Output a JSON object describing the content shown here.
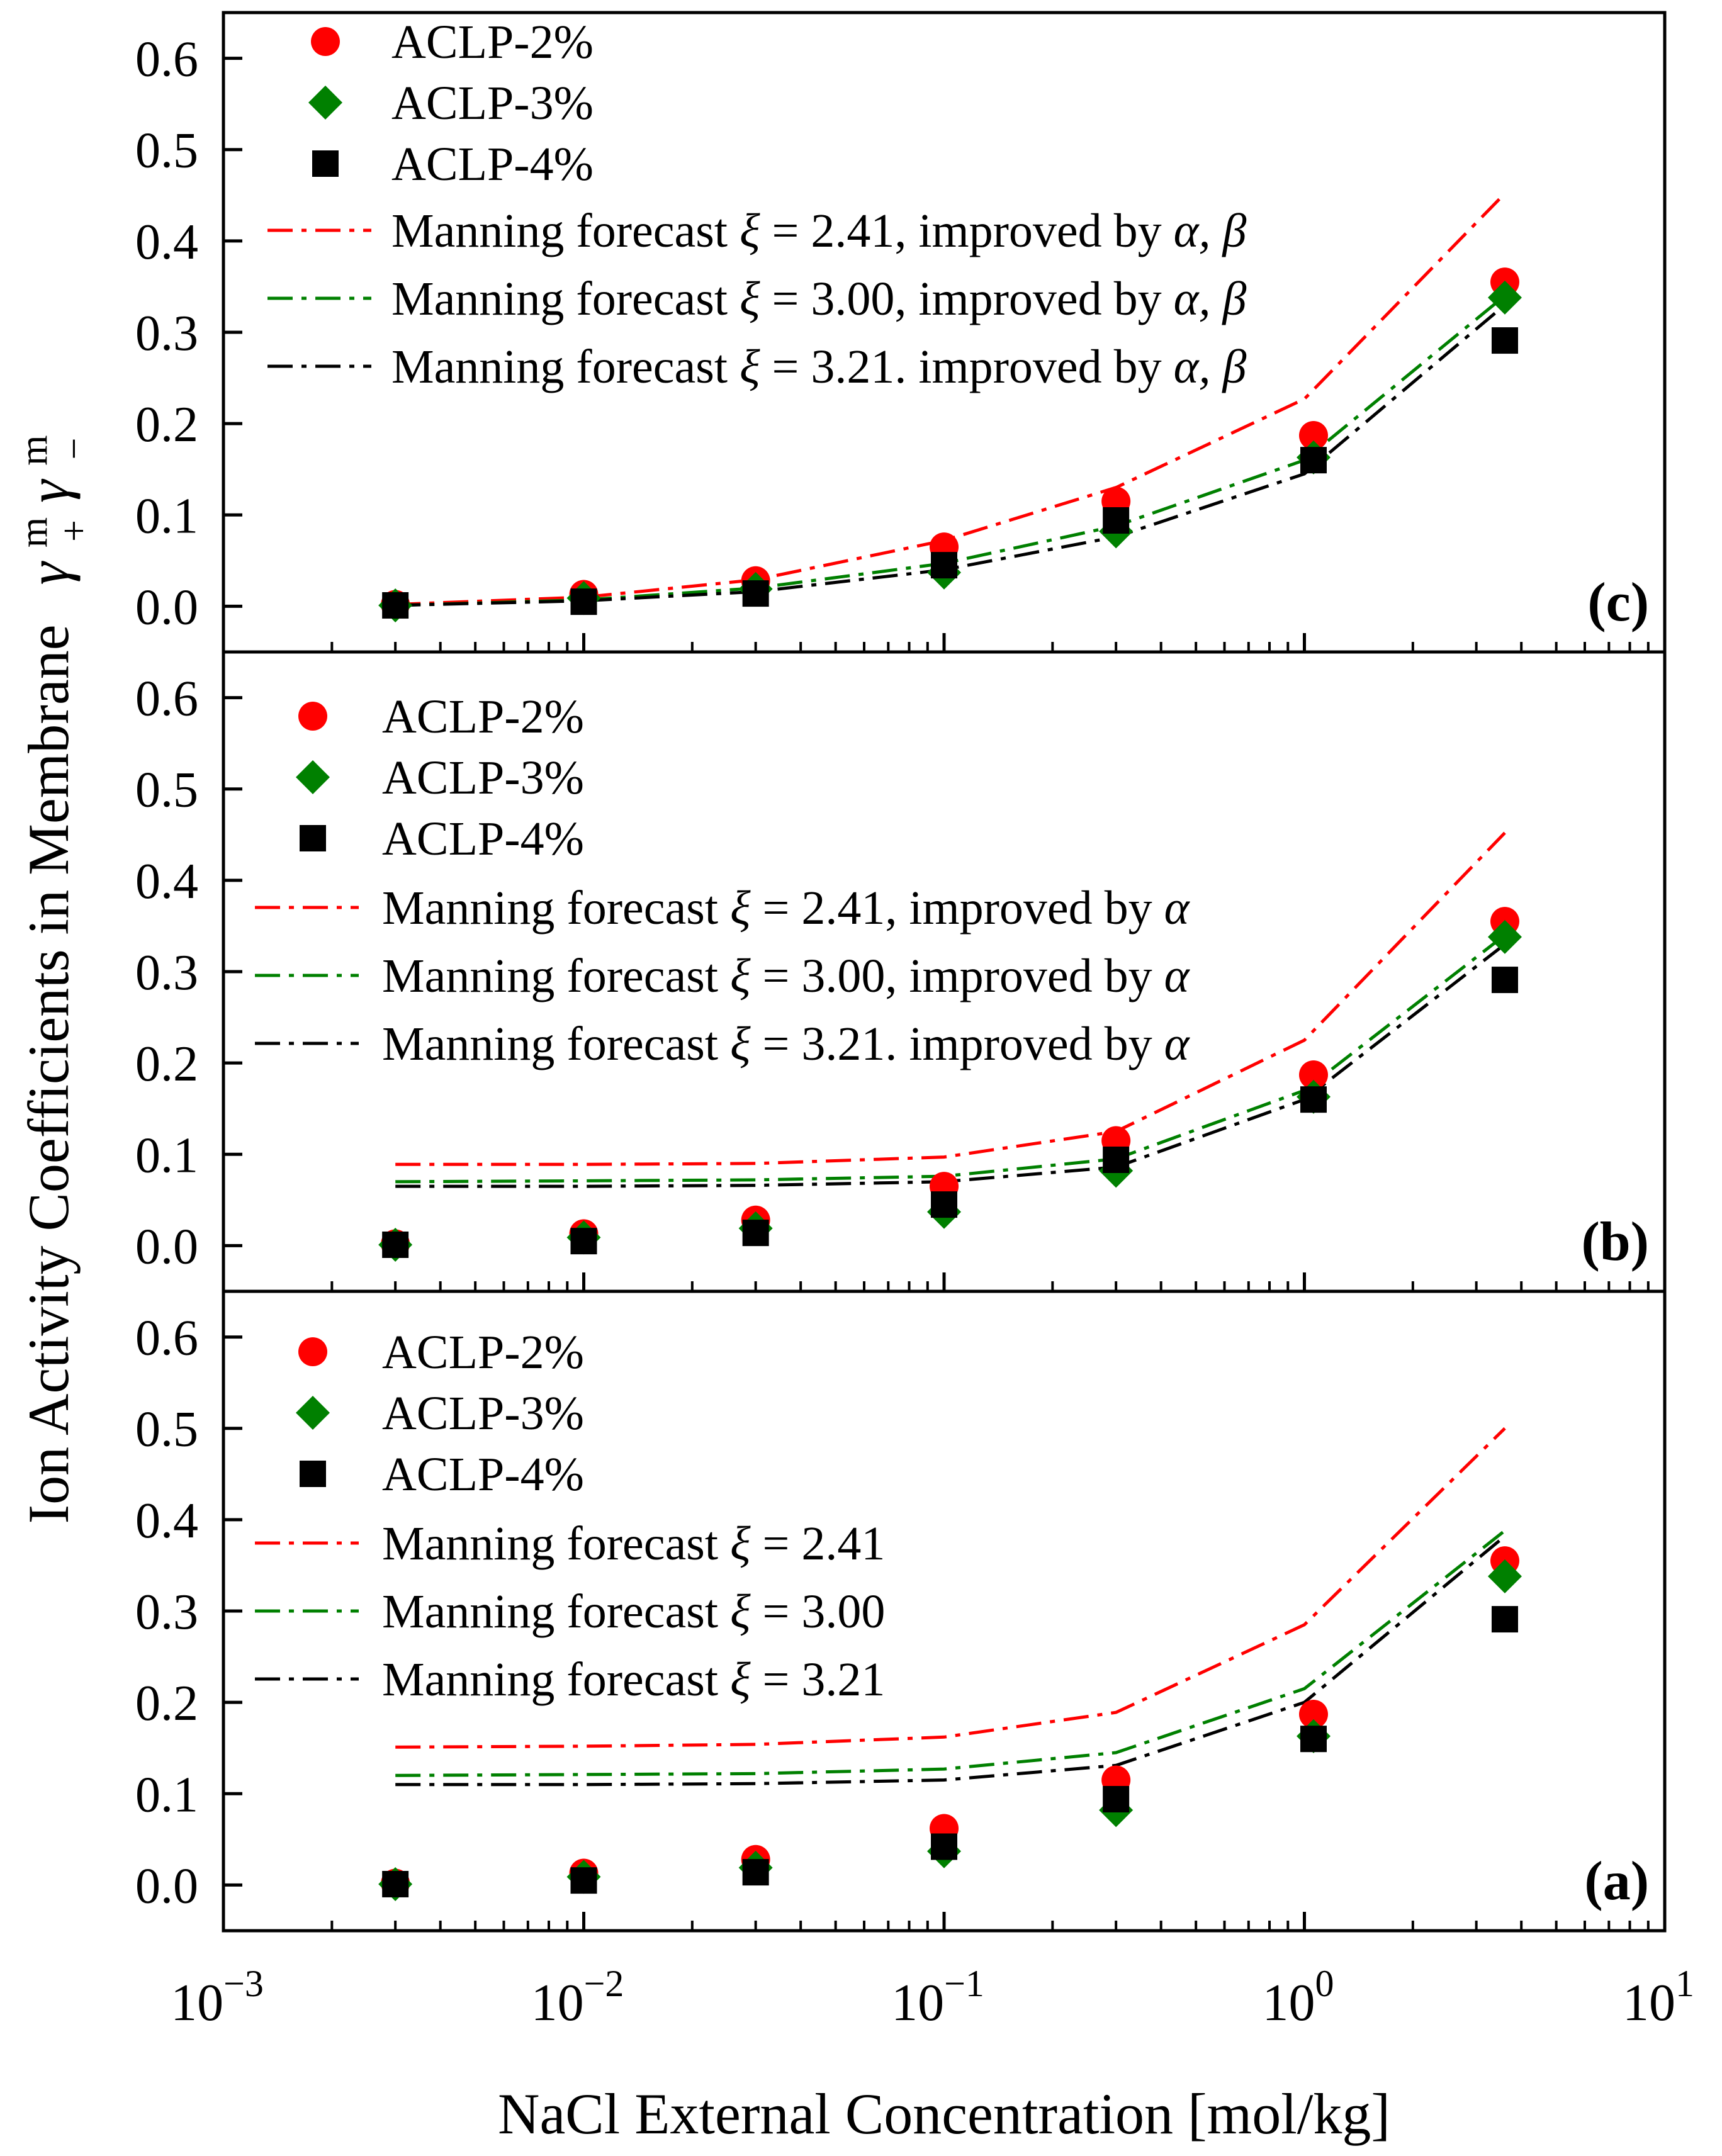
{
  "figure": {
    "ylabel": "Ion Activity Coefficients in Membrane",
    "ylabel_symbol": "γ",
    "ylabel_sup": "m",
    "ylabel_sub_plus": "+",
    "ylabel_sub_minus": "−",
    "xlabel": "NaCl External  Concentration [mol/kg]",
    "xtick_base": "10",
    "xtick_exponents": [
      "−3",
      "−2",
      "−1",
      "0",
      "1"
    ],
    "colors": {
      "red": "#ff0000",
      "green": "#008000",
      "black": "#000000"
    }
  },
  "chart_data": [
    {
      "type": "scatter",
      "panel_label": "(c)",
      "xscale": "log",
      "xlim": [
        0.001,
        10
      ],
      "ylim": [
        -0.05,
        0.65
      ],
      "yticks": [
        "0.0",
        "0.1",
        "0.2",
        "0.3",
        "0.4",
        "0.5",
        "0.6"
      ],
      "legend_position": "top-left",
      "x": [
        0.003,
        0.01,
        0.03,
        0.1,
        0.3,
        1.06,
        3.6
      ],
      "series": [
        {
          "name": "ACLP-2%",
          "marker": "circle",
          "color": "#ff0000",
          "values": [
            0.002,
            0.013,
            0.028,
            0.065,
            0.115,
            0.187,
            0.355
          ]
        },
        {
          "name": "ACLP-3%",
          "marker": "diamond",
          "color": "#008000",
          "values": [
            0.001,
            0.009,
            0.019,
            0.037,
            0.082,
            0.163,
            0.338
          ]
        },
        {
          "name": "ACLP-4%",
          "marker": "square",
          "color": "#000000",
          "values": [
            0.001,
            0.005,
            0.014,
            0.045,
            0.094,
            0.16,
            0.291
          ]
        }
      ],
      "lines": [
        {
          "prefix": "Manning forecast ",
          "xi": "ξ",
          "rest": " = 2.41, improved by ",
          "greek": "α, β",
          "color": "#ff0000",
          "x": [
            0.003,
            0.01,
            0.03,
            0.1,
            0.3,
            1.0,
            3.6
          ],
          "values": [
            0.002,
            0.01,
            0.029,
            0.072,
            0.13,
            0.227,
            0.452
          ]
        },
        {
          "prefix": "Manning forecast ",
          "xi": "ξ",
          "rest": " = 3.00, improved by ",
          "greek": "α, β",
          "color": "#008000",
          "x": [
            0.003,
            0.01,
            0.03,
            0.1,
            0.3,
            1.0,
            3.6
          ],
          "values": [
            0.001,
            0.007,
            0.02,
            0.047,
            0.088,
            0.16,
            0.34
          ]
        },
        {
          "prefix": "Manning forecast ",
          "xi": "ξ",
          "rest": " = 3.21. improved by ",
          "greek": "α, β",
          "color": "#000000",
          "x": [
            0.003,
            0.01,
            0.03,
            0.1,
            0.3,
            1.0,
            3.6
          ],
          "values": [
            0.001,
            0.006,
            0.016,
            0.04,
            0.076,
            0.145,
            0.33
          ]
        }
      ]
    },
    {
      "type": "scatter",
      "panel_label": "(b)",
      "xscale": "log",
      "xlim": [
        0.001,
        10
      ],
      "ylim": [
        -0.05,
        0.65
      ],
      "yticks": [
        "0.0",
        "0.1",
        "0.2",
        "0.3",
        "0.4",
        "0.5",
        "0.6"
      ],
      "legend_position": "top-left",
      "x": [
        0.003,
        0.01,
        0.03,
        0.1,
        0.3,
        1.06,
        3.6
      ],
      "series": [
        {
          "name": "ACLP-2%",
          "marker": "circle",
          "color": "#ff0000",
          "values": [
            0.002,
            0.013,
            0.028,
            0.065,
            0.115,
            0.187,
            0.355
          ]
        },
        {
          "name": "ACLP-3%",
          "marker": "diamond",
          "color": "#008000",
          "values": [
            0.001,
            0.009,
            0.019,
            0.037,
            0.082,
            0.163,
            0.338
          ]
        },
        {
          "name": "ACLP-4%",
          "marker": "square",
          "color": "#000000",
          "values": [
            0.001,
            0.005,
            0.014,
            0.045,
            0.094,
            0.16,
            0.291
          ]
        }
      ],
      "lines": [
        {
          "prefix": "Manning forecast ",
          "xi": "ξ",
          "rest": " = 2.41, improved by ",
          "greek": "α",
          "color": "#ff0000",
          "x": [
            0.003,
            0.01,
            0.03,
            0.1,
            0.3,
            1.0,
            3.6
          ],
          "values": [
            0.089,
            0.089,
            0.09,
            0.097,
            0.125,
            0.225,
            0.452
          ]
        },
        {
          "prefix": "Manning forecast ",
          "xi": "ξ",
          "rest": " = 3.00, improved by ",
          "greek": "α",
          "color": "#008000",
          "x": [
            0.003,
            0.01,
            0.03,
            0.1,
            0.3,
            1.0,
            3.6
          ],
          "values": [
            0.07,
            0.071,
            0.072,
            0.076,
            0.095,
            0.17,
            0.34
          ]
        },
        {
          "prefix": "Manning forecast ",
          "xi": "ξ",
          "rest": " = 3.21. improved by ",
          "greek": "α",
          "color": "#000000",
          "x": [
            0.003,
            0.01,
            0.03,
            0.1,
            0.3,
            1.0,
            3.6
          ],
          "values": [
            0.065,
            0.065,
            0.066,
            0.07,
            0.086,
            0.16,
            0.33
          ]
        }
      ]
    },
    {
      "type": "scatter",
      "panel_label": "(a)",
      "xscale": "log",
      "xlim": [
        0.001,
        10
      ],
      "ylim": [
        -0.05,
        0.65
      ],
      "yticks": [
        "0.0",
        "0.1",
        "0.2",
        "0.3",
        "0.4",
        "0.5",
        "0.6"
      ],
      "legend_position": "top-left",
      "x": [
        0.003,
        0.01,
        0.03,
        0.1,
        0.3,
        1.06,
        3.6
      ],
      "series": [
        {
          "name": "ACLP-2%",
          "marker": "circle",
          "color": "#ff0000",
          "values": [
            0.002,
            0.013,
            0.028,
            0.062,
            0.115,
            0.187,
            0.355
          ]
        },
        {
          "name": "ACLP-3%",
          "marker": "diamond",
          "color": "#008000",
          "values": [
            0.001,
            0.009,
            0.019,
            0.037,
            0.082,
            0.163,
            0.338
          ]
        },
        {
          "name": "ACLP-4%",
          "marker": "square",
          "color": "#000000",
          "values": [
            0.001,
            0.005,
            0.014,
            0.042,
            0.094,
            0.16,
            0.291
          ]
        }
      ],
      "lines": [
        {
          "prefix": "Manning forecast ",
          "xi": "ξ",
          "rest": " = 2.41",
          "greek": "",
          "color": "#ff0000",
          "x": [
            0.003,
            0.01,
            0.03,
            0.1,
            0.3,
            1.0,
            3.6
          ],
          "values": [
            0.151,
            0.152,
            0.154,
            0.162,
            0.189,
            0.285,
            0.5
          ]
        },
        {
          "prefix": "Manning forecast ",
          "xi": "ξ",
          "rest": " = 3.00",
          "greek": "",
          "color": "#008000",
          "x": [
            0.003,
            0.01,
            0.03,
            0.1,
            0.3,
            1.0,
            3.6
          ],
          "values": [
            0.12,
            0.121,
            0.122,
            0.127,
            0.145,
            0.215,
            0.388
          ]
        },
        {
          "prefix": "Manning forecast ",
          "xi": "ξ",
          "rest": " = 3.21",
          "greek": "",
          "color": "#000000",
          "x": [
            0.003,
            0.01,
            0.03,
            0.1,
            0.3,
            1.0,
            3.6
          ],
          "values": [
            0.11,
            0.11,
            0.111,
            0.115,
            0.131,
            0.2,
            0.382
          ]
        }
      ]
    }
  ]
}
